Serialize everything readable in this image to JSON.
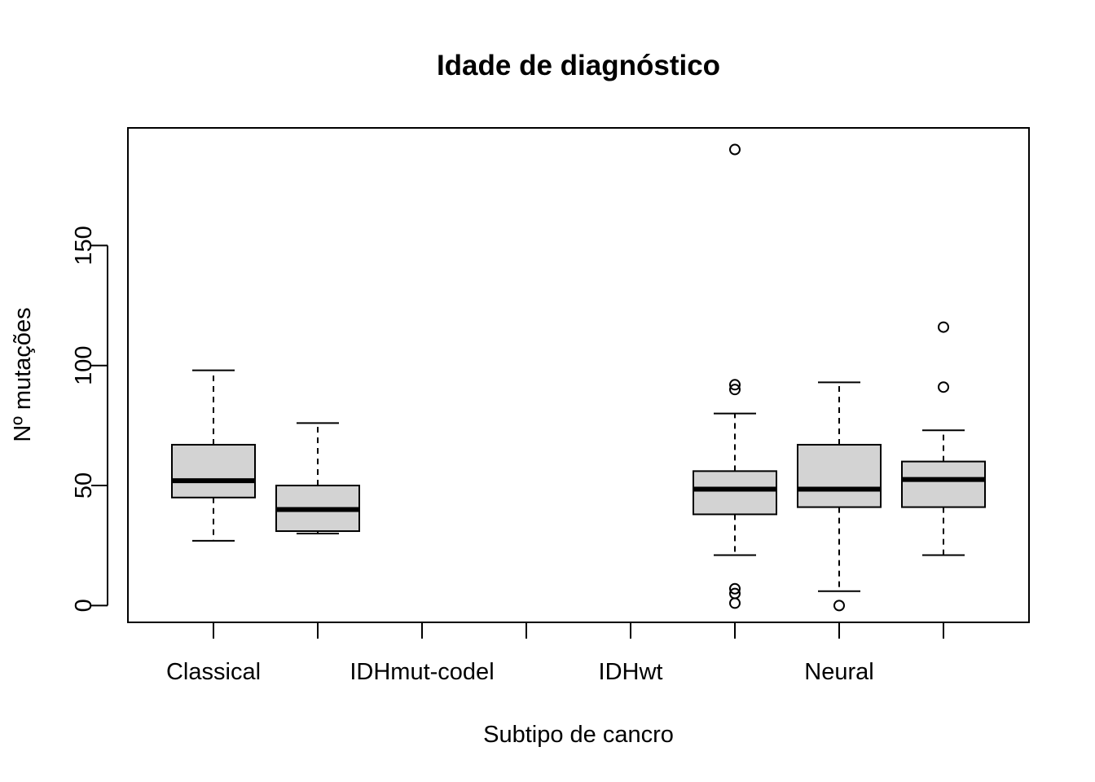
{
  "chart_data": {
    "type": "boxplot",
    "title": "Idade de diagnóstico",
    "xlabel": "Subtipo de cancro",
    "ylabel": "Nº mutações",
    "ylim": [
      -7,
      199
    ],
    "yticks": [
      0,
      50,
      100,
      150
    ],
    "x_tick_labels": [
      "Classical",
      "IDHmut-codel",
      "IDHwt",
      "Neural"
    ],
    "grid": false,
    "box_fill": "#d3d3d3",
    "groups": [
      {
        "position": 1,
        "whisker_low": 27,
        "q1": 45,
        "median": 52,
        "q3": 67,
        "whisker_high": 98,
        "outliers": []
      },
      {
        "position": 2,
        "whisker_low": 30,
        "q1": 31,
        "median": 40,
        "q3": 50,
        "whisker_high": 76,
        "outliers": []
      },
      {
        "position": 3,
        "whisker_low": null,
        "q1": null,
        "median": null,
        "q3": null,
        "whisker_high": null,
        "outliers": []
      },
      {
        "position": 4,
        "whisker_low": null,
        "q1": null,
        "median": null,
        "q3": null,
        "whisker_high": null,
        "outliers": []
      },
      {
        "position": 5,
        "whisker_low": null,
        "q1": null,
        "median": null,
        "q3": null,
        "whisker_high": null,
        "outliers": []
      },
      {
        "position": 6,
        "whisker_low": 21,
        "q1": 38,
        "median": 48.5,
        "q3": 56,
        "whisker_high": 80,
        "outliers": [
          1,
          5,
          7,
          90,
          92,
          190
        ]
      },
      {
        "position": 7,
        "whisker_low": 6,
        "q1": 41,
        "median": 48.5,
        "q3": 67,
        "whisker_high": 93,
        "outliers": [
          0
        ]
      },
      {
        "position": 8,
        "whisker_low": 21,
        "q1": 41,
        "median": 52.5,
        "q3": 60,
        "whisker_high": 73,
        "outliers": [
          91,
          116
        ]
      }
    ]
  }
}
